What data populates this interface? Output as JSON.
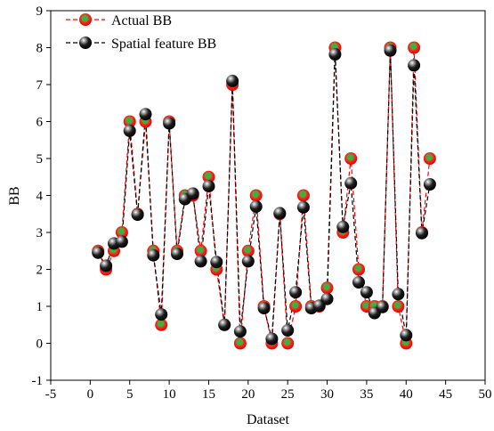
{
  "chart_data": {
    "type": "line",
    "title": "",
    "xlabel": "Dataset",
    "ylabel": "BB",
    "xlim": [
      -5,
      50
    ],
    "ylim": [
      -1,
      9
    ],
    "xticks": [
      -5,
      0,
      5,
      10,
      15,
      20,
      25,
      30,
      35,
      40,
      45,
      50
    ],
    "yticks": [
      -1,
      0,
      1,
      2,
      3,
      4,
      5,
      6,
      7,
      8,
      9
    ],
    "legend_position": "top-left",
    "grid": false,
    "x": [
      1,
      2,
      3,
      4,
      5,
      6,
      7,
      8,
      9,
      10,
      11,
      12,
      13,
      14,
      15,
      16,
      17,
      18,
      19,
      20,
      21,
      22,
      23,
      24,
      25,
      26,
      27,
      28,
      29,
      30,
      31,
      32,
      33,
      34,
      35,
      36,
      37,
      38,
      39,
      40,
      41,
      42,
      43
    ],
    "series": [
      {
        "name": "Actual BB",
        "marker": "red circle with green center",
        "color": "#ff0000",
        "values": [
          2.5,
          2.0,
          2.5,
          3.0,
          6.0,
          3.5,
          6.0,
          2.5,
          0.5,
          6.0,
          2.5,
          4.0,
          4.0,
          2.5,
          4.5,
          2.0,
          0.5,
          7.0,
          0.0,
          2.5,
          4.0,
          1.0,
          0.0,
          3.5,
          0.0,
          1.0,
          4.0,
          1.0,
          1.0,
          1.5,
          8.0,
          3.0,
          5.0,
          2.0,
          1.0,
          1.0,
          1.0,
          8.0,
          1.0,
          0.0,
          8.0,
          3.0,
          5.0
        ]
      },
      {
        "name": "Spatial feature BB",
        "marker": "black sphere",
        "color": "#000000",
        "values": [
          2.45,
          2.1,
          2.7,
          2.75,
          5.75,
          3.48,
          6.2,
          2.38,
          0.78,
          5.95,
          2.42,
          3.9,
          4.05,
          2.22,
          4.25,
          2.2,
          0.5,
          7.1,
          0.32,
          2.22,
          3.7,
          0.95,
          0.12,
          3.52,
          0.35,
          1.38,
          3.68,
          0.95,
          1.02,
          1.2,
          7.82,
          3.15,
          4.33,
          1.65,
          1.38,
          0.82,
          0.98,
          7.92,
          1.33,
          0.22,
          7.52,
          2.98,
          4.3
        ]
      }
    ]
  }
}
